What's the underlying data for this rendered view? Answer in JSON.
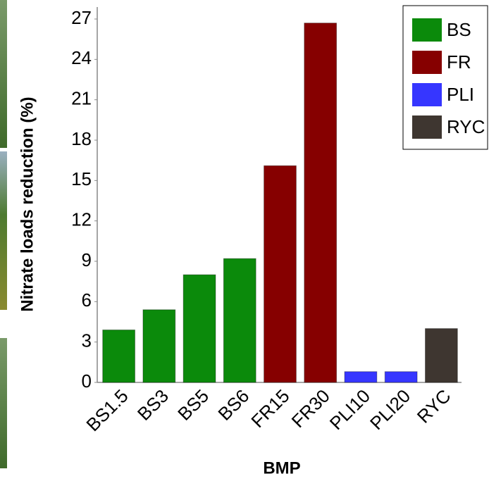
{
  "chart_data": {
    "type": "bar",
    "x_label": "BMP",
    "y_label": "Nitrate loads reduction (%)",
    "categories": [
      "BS1.5",
      "BS3",
      "BS5",
      "BS6",
      "FR15",
      "FR30",
      "PLI10",
      "PLI20",
      "RYC"
    ],
    "series": [
      {
        "name": "BS",
        "color": "#0b8a0b",
        "values": [
          3.9,
          5.4,
          8.0,
          9.2,
          null,
          null,
          null,
          null,
          null
        ]
      },
      {
        "name": "FR",
        "color": "#860000",
        "values": [
          null,
          null,
          null,
          null,
          16.1,
          26.7,
          null,
          null,
          null
        ]
      },
      {
        "name": "PLI",
        "color": "#3636ff",
        "values": [
          null,
          null,
          null,
          null,
          null,
          null,
          0.8,
          0.8,
          null
        ]
      },
      {
        "name": "RYC",
        "color": "#3e3630",
        "values": [
          null,
          null,
          null,
          null,
          null,
          null,
          null,
          null,
          4.0
        ]
      }
    ],
    "ylim": [
      0,
      27
    ],
    "yticks": [
      0,
      3,
      6,
      9,
      12,
      15,
      18,
      21,
      24,
      27
    ],
    "legend": "top-right"
  }
}
